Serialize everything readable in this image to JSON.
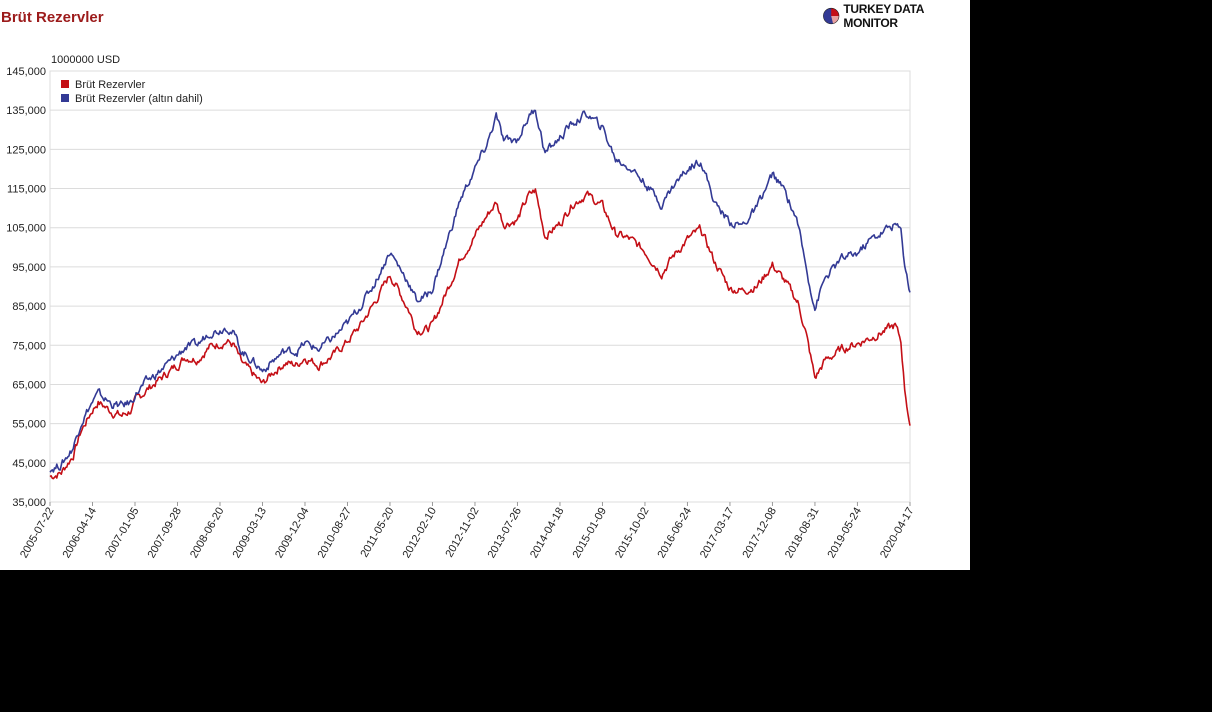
{
  "header": {
    "title": "Brüt Rezervler",
    "brand": "TURKEY DATA MONITOR"
  },
  "colors": {
    "title": "#9c1b1b",
    "series_red": "#c40f16",
    "series_blue": "#333a95",
    "grid": "#dcdcdc"
  },
  "chart_data": {
    "type": "line",
    "title": "Brüt Rezervler",
    "unit": "1000000 USD",
    "xlabel": "",
    "ylabel": "1000000 USD",
    "ylim": [
      35000,
      145000
    ],
    "yticks": [
      "145,000",
      "135,000",
      "125,000",
      "115,000",
      "105,000",
      "95,000",
      "85,000",
      "75,000",
      "65,000",
      "55,000",
      "45,000",
      "35,000"
    ],
    "ytick_values": [
      145000,
      135000,
      125000,
      115000,
      105000,
      95000,
      85000,
      75000,
      65000,
      55000,
      45000,
      35000
    ],
    "xlim": [
      "2005-07-22",
      "2020-04-17"
    ],
    "xticks": [
      "2005-07-22",
      "2006-04-14",
      "2007-01-05",
      "2007-09-28",
      "2008-06-20",
      "2009-03-13",
      "2009-12-04",
      "2010-08-27",
      "2011-05-20",
      "2012-02-10",
      "2012-11-02",
      "2013-07-26",
      "2014-04-18",
      "2015-01-09",
      "2015-10-02",
      "2016-06-24",
      "2017-03-17",
      "2017-12-08",
      "2018-08-31",
      "2019-05-24",
      "2020-04-17"
    ],
    "grid": true,
    "legend_position": "top-left",
    "series": [
      {
        "name": "Brüt Rezervler",
        "color": "#c40f16",
        "points": [
          [
            "2005-07-22",
            41500
          ],
          [
            "2005-10-01",
            42500
          ],
          [
            "2005-12-15",
            47000
          ],
          [
            "2006-02-01",
            53000
          ],
          [
            "2006-04-14",
            58500
          ],
          [
            "2006-05-20",
            60500
          ],
          [
            "2006-08-15",
            58000
          ],
          [
            "2006-10-15",
            57000
          ],
          [
            "2006-12-15",
            58500
          ],
          [
            "2007-01-05",
            60500
          ],
          [
            "2007-03-15",
            63500
          ],
          [
            "2007-06-15",
            66500
          ],
          [
            "2007-09-28",
            70000
          ],
          [
            "2007-11-15",
            72000
          ],
          [
            "2008-02-01",
            71500
          ],
          [
            "2008-04-15",
            74500
          ],
          [
            "2008-06-20",
            75500
          ],
          [
            "2008-08-01",
            76000
          ],
          [
            "2008-09-15",
            75000
          ],
          [
            "2008-11-01",
            70500
          ],
          [
            "2009-01-01",
            68000
          ],
          [
            "2009-03-13",
            65000
          ],
          [
            "2009-05-15",
            68000
          ],
          [
            "2009-08-01",
            70500
          ],
          [
            "2009-10-15",
            70000
          ],
          [
            "2009-12-04",
            72000
          ],
          [
            "2010-03-01",
            70000
          ],
          [
            "2010-06-01",
            72500
          ],
          [
            "2010-08-27",
            76000
          ],
          [
            "2010-11-15",
            80000
          ],
          [
            "2011-02-15",
            86000
          ],
          [
            "2011-05-20",
            93000
          ],
          [
            "2011-07-01",
            90000
          ],
          [
            "2011-09-15",
            84000
          ],
          [
            "2011-11-01",
            79000
          ],
          [
            "2012-01-01",
            79000
          ],
          [
            "2012-02-10",
            80000
          ],
          [
            "2012-05-01",
            88000
          ],
          [
            "2012-08-01",
            97000
          ],
          [
            "2012-11-02",
            103000
          ],
          [
            "2013-01-15",
            108000
          ],
          [
            "2013-03-15",
            111500
          ],
          [
            "2013-05-01",
            106000
          ],
          [
            "2013-07-26",
            107000
          ],
          [
            "2013-10-01",
            113000
          ],
          [
            "2013-11-15",
            114500
          ],
          [
            "2014-01-15",
            103000
          ],
          [
            "2014-04-18",
            106000
          ],
          [
            "2014-07-01",
            111000
          ],
          [
            "2014-10-01",
            113500
          ],
          [
            "2015-01-09",
            110500
          ],
          [
            "2015-04-01",
            103500
          ],
          [
            "2015-07-01",
            102000
          ],
          [
            "2015-10-02",
            99000
          ],
          [
            "2016-01-15",
            93500
          ],
          [
            "2016-04-01",
            98000
          ],
          [
            "2016-06-24",
            102000
          ],
          [
            "2016-09-15",
            104500
          ],
          [
            "2016-12-15",
            96000
          ],
          [
            "2017-03-17",
            89500
          ],
          [
            "2017-06-01",
            89000
          ],
          [
            "2017-09-01",
            90000
          ],
          [
            "2017-12-08",
            95500
          ],
          [
            "2018-03-01",
            91000
          ],
          [
            "2018-05-15",
            86000
          ],
          [
            "2018-07-01",
            79000
          ],
          [
            "2018-08-31",
            66500
          ],
          [
            "2018-11-01",
            71000
          ],
          [
            "2019-02-15",
            74000
          ],
          [
            "2019-05-24",
            75500
          ],
          [
            "2019-08-15",
            77000
          ],
          [
            "2019-11-01",
            78500
          ],
          [
            "2020-01-15",
            80000
          ],
          [
            "2020-02-20",
            76000
          ],
          [
            "2020-03-15",
            64000
          ],
          [
            "2020-04-17",
            54500
          ]
        ]
      },
      {
        "name": "Brüt Rezervler (altın dahil)",
        "color": "#333a95",
        "points": [
          [
            "2005-07-22",
            43500
          ],
          [
            "2005-10-01",
            44500
          ],
          [
            "2005-12-15",
            49000
          ],
          [
            "2006-02-01",
            55500
          ],
          [
            "2006-04-14",
            60500
          ],
          [
            "2006-05-20",
            62500
          ],
          [
            "2006-08-15",
            60000
          ],
          [
            "2006-10-15",
            59500
          ],
          [
            "2006-12-15",
            60500
          ],
          [
            "2007-01-05",
            62500
          ],
          [
            "2007-03-15",
            65500
          ],
          [
            "2007-06-15",
            68500
          ],
          [
            "2007-09-28",
            72500
          ],
          [
            "2007-11-15",
            74500
          ],
          [
            "2008-02-01",
            75000
          ],
          [
            "2008-04-15",
            78500
          ],
          [
            "2008-06-20",
            79000
          ],
          [
            "2008-08-01",
            80000
          ],
          [
            "2008-09-15",
            78000
          ],
          [
            "2008-11-01",
            73500
          ],
          [
            "2009-01-01",
            71500
          ],
          [
            "2009-03-13",
            68500
          ],
          [
            "2009-05-15",
            71000
          ],
          [
            "2009-08-01",
            73500
          ],
          [
            "2009-10-15",
            73500
          ],
          [
            "2009-12-04",
            75500
          ],
          [
            "2010-03-01",
            74000
          ],
          [
            "2010-06-01",
            77000
          ],
          [
            "2010-08-27",
            80500
          ],
          [
            "2010-11-15",
            85000
          ],
          [
            "2011-02-15",
            91000
          ],
          [
            "2011-05-20",
            99000
          ],
          [
            "2011-07-01",
            96000
          ],
          [
            "2011-09-15",
            91000
          ],
          [
            "2011-11-01",
            86500
          ],
          [
            "2012-01-01",
            87500
          ],
          [
            "2012-02-10",
            89500
          ],
          [
            "2012-05-01",
            100000
          ],
          [
            "2012-08-01",
            112000
          ],
          [
            "2012-11-02",
            120000
          ],
          [
            "2013-01-15",
            126000
          ],
          [
            "2013-03-15",
            133500
          ],
          [
            "2013-05-01",
            127000
          ],
          [
            "2013-07-26",
            127500
          ],
          [
            "2013-10-01",
            133000
          ],
          [
            "2013-11-15",
            135500
          ],
          [
            "2014-01-15",
            124000
          ],
          [
            "2014-04-18",
            128000
          ],
          [
            "2014-07-01",
            131500
          ],
          [
            "2014-10-01",
            134000
          ],
          [
            "2015-01-09",
            130500
          ],
          [
            "2015-04-01",
            122500
          ],
          [
            "2015-07-01",
            120500
          ],
          [
            "2015-10-02",
            116500
          ],
          [
            "2016-01-15",
            111000
          ],
          [
            "2016-04-01",
            116000
          ],
          [
            "2016-06-24",
            120000
          ],
          [
            "2016-09-15",
            122500
          ],
          [
            "2016-12-15",
            111000
          ],
          [
            "2017-03-17",
            106500
          ],
          [
            "2017-06-01",
            105500
          ],
          [
            "2017-09-01",
            110000
          ],
          [
            "2017-12-08",
            118500
          ],
          [
            "2018-03-01",
            114000
          ],
          [
            "2018-05-15",
            106500
          ],
          [
            "2018-07-01",
            96000
          ],
          [
            "2018-08-31",
            84500
          ],
          [
            "2018-11-01",
            92000
          ],
          [
            "2019-02-15",
            97000
          ],
          [
            "2019-05-24",
            98500
          ],
          [
            "2019-08-15",
            102000
          ],
          [
            "2019-11-01",
            104000
          ],
          [
            "2020-01-15",
            106000
          ],
          [
            "2020-02-20",
            104000
          ],
          [
            "2020-03-15",
            96000
          ],
          [
            "2020-04-17",
            88500
          ]
        ]
      }
    ]
  }
}
